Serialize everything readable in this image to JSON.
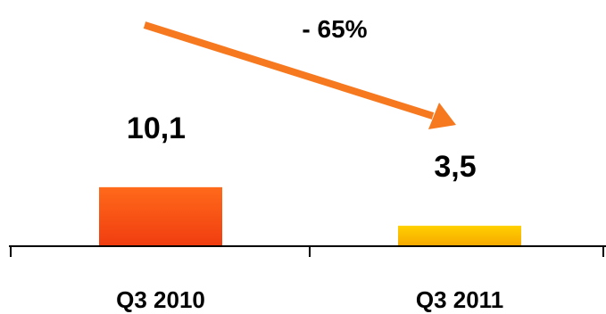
{
  "colors": {
    "bar_q3_2010": "#ff4a10",
    "bar_q3_2011": "#ffbf00",
    "arrow": "#f7791f",
    "axis": "#000000"
  },
  "annotation": {
    "change_label": "- 65%"
  },
  "chart_data": {
    "type": "bar",
    "title": "",
    "xlabel": "",
    "ylabel": "",
    "grid": false,
    "categories": [
      "Q3 2010",
      "Q3 2011"
    ],
    "values": [
      10.1,
      3.5
    ],
    "data_labels": [
      "10,1",
      "3,5"
    ],
    "ylim": [
      0,
      10.1
    ]
  }
}
